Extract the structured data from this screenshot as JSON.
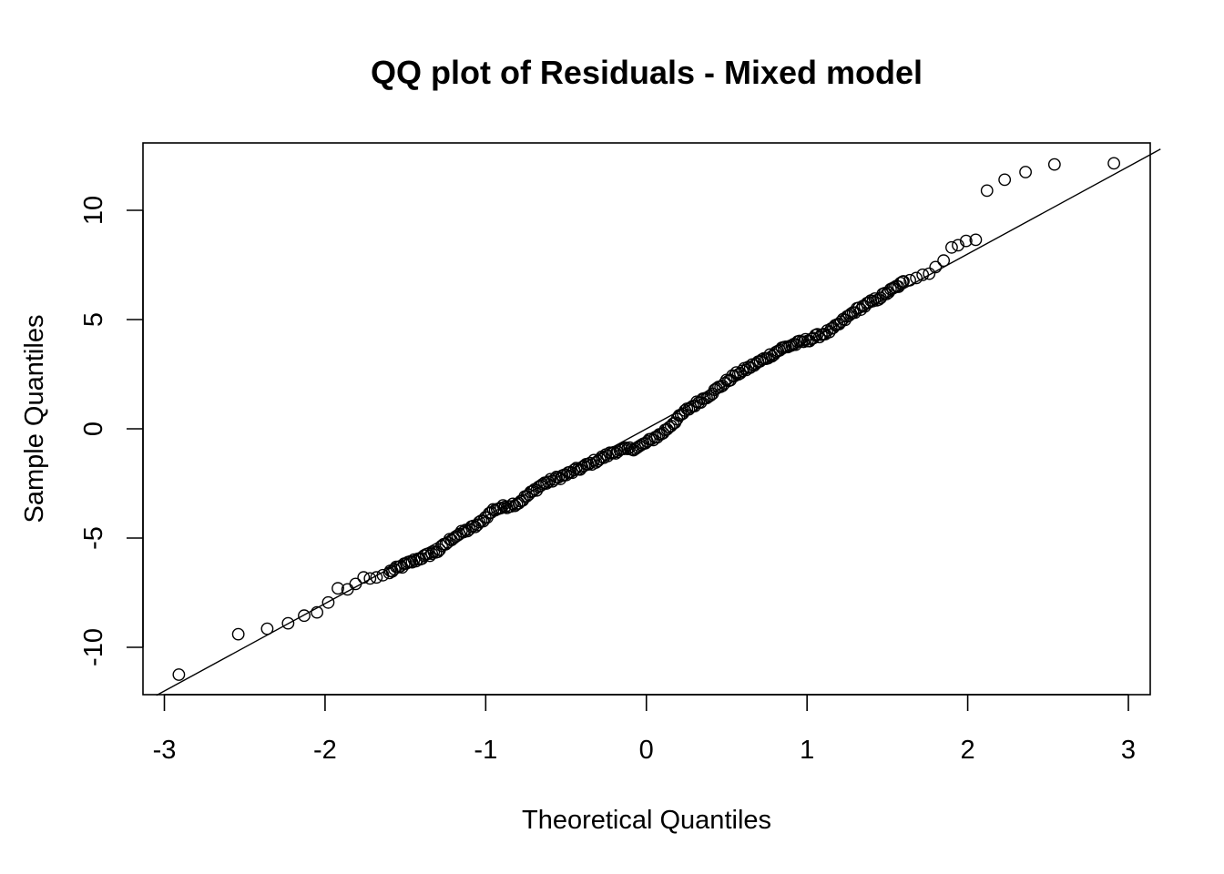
{
  "chart_data": {
    "type": "scatter",
    "title": "QQ plot of Residuals - Mixed model",
    "xlabel": "Theoretical Quantiles",
    "ylabel": "Sample Quantiles",
    "xlim": [
      -3.05,
      3.2
    ],
    "ylim": [
      -12.2,
      13.0
    ],
    "xticks": [
      -3,
      -2,
      -1,
      0,
      1,
      2,
      3
    ],
    "xtick_labels": [
      "-3",
      "-2",
      "-1",
      "0",
      "1",
      "2",
      "3"
    ],
    "yticks": [
      -10,
      -5,
      0,
      5,
      10
    ],
    "ytick_labels": [
      "-10",
      "-5",
      "0",
      "5",
      "10"
    ],
    "grid": false,
    "legend": "none",
    "reference_line": {
      "intercept": 0.0,
      "slope": 4.0
    },
    "tail_points": [
      {
        "x": -2.91,
        "y": -11.25
      },
      {
        "x": -2.54,
        "y": -9.4
      },
      {
        "x": -2.36,
        "y": -9.15
      },
      {
        "x": -2.23,
        "y": -8.9
      },
      {
        "x": -2.13,
        "y": -8.55
      },
      {
        "x": -2.05,
        "y": -8.4
      },
      {
        "x": -1.98,
        "y": -7.95
      },
      {
        "x": -1.92,
        "y": -7.3
      },
      {
        "x": -1.86,
        "y": -7.35
      },
      {
        "x": -1.81,
        "y": -7.1
      },
      {
        "x": -1.76,
        "y": -6.8
      },
      {
        "x": -1.72,
        "y": -6.85
      },
      {
        "x": -1.68,
        "y": -6.8
      },
      {
        "x": -1.64,
        "y": -6.7
      },
      {
        "x": -1.6,
        "y": -6.6
      },
      {
        "x": 1.6,
        "y": 6.75
      },
      {
        "x": 1.64,
        "y": 6.8
      },
      {
        "x": 1.68,
        "y": 6.9
      },
      {
        "x": 1.72,
        "y": 7.05
      },
      {
        "x": 1.76,
        "y": 7.1
      },
      {
        "x": 1.8,
        "y": 7.4
      },
      {
        "x": 1.85,
        "y": 7.7
      },
      {
        "x": 1.9,
        "y": 8.3
      },
      {
        "x": 1.94,
        "y": 8.4
      },
      {
        "x": 1.99,
        "y": 8.6
      },
      {
        "x": 2.05,
        "y": 8.65
      },
      {
        "x": 2.12,
        "y": 10.9
      },
      {
        "x": 2.23,
        "y": 11.4
      },
      {
        "x": 2.36,
        "y": 11.75
      },
      {
        "x": 2.54,
        "y": 12.1
      },
      {
        "x": 2.91,
        "y": 12.15
      }
    ],
    "body_curve": [
      {
        "x": -1.6,
        "y": -6.55
      },
      {
        "x": -1.45,
        "y": -6.05
      },
      {
        "x": -1.3,
        "y": -5.6
      },
      {
        "x": -1.2,
        "y": -4.95
      },
      {
        "x": -1.05,
        "y": -4.4
      },
      {
        "x": -0.95,
        "y": -3.7
      },
      {
        "x": -0.8,
        "y": -3.4
      },
      {
        "x": -0.65,
        "y": -2.55
      },
      {
        "x": -0.5,
        "y": -2.1
      },
      {
        "x": -0.35,
        "y": -1.6
      },
      {
        "x": -0.2,
        "y": -1.05
      },
      {
        "x": -0.05,
        "y": -0.85
      },
      {
        "x": 0.1,
        "y": -0.2
      },
      {
        "x": 0.25,
        "y": 0.85
      },
      {
        "x": 0.4,
        "y": 1.6
      },
      {
        "x": 0.55,
        "y": 2.45
      },
      {
        "x": 0.7,
        "y": 3.05
      },
      {
        "x": 0.85,
        "y": 3.7
      },
      {
        "x": 1.0,
        "y": 4.05
      },
      {
        "x": 1.15,
        "y": 4.5
      },
      {
        "x": 1.3,
        "y": 5.4
      },
      {
        "x": 1.45,
        "y": 6.0
      },
      {
        "x": 1.6,
        "y": 6.7
      }
    ],
    "body_point_count": 260
  }
}
